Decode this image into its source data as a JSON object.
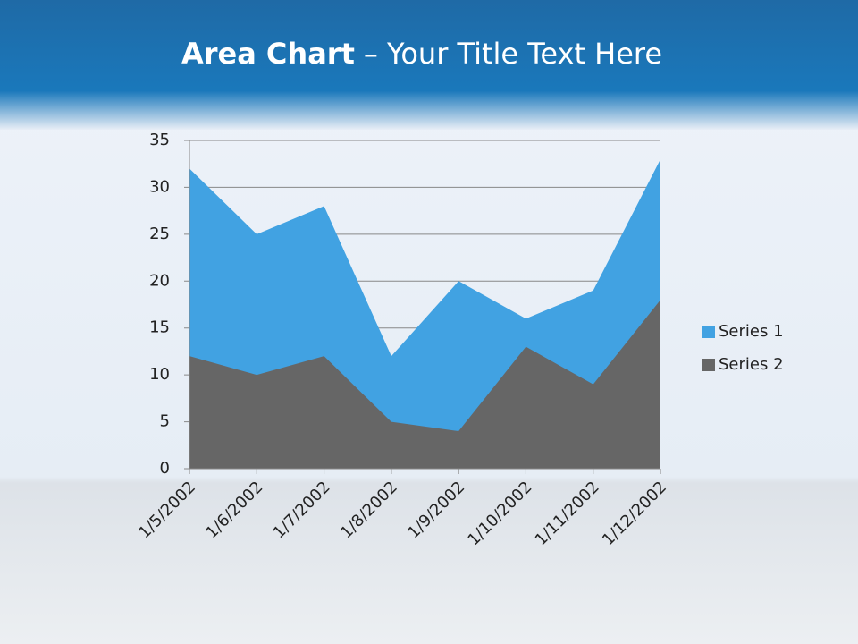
{
  "chart_data": {
    "type": "area",
    "title": [
      "Area Chart",
      "– Your Title Text Here"
    ],
    "categories": [
      "1/5/2002",
      "1/6/2002",
      "1/7/2002",
      "1/8/2002",
      "1/9/2002",
      "1/10/2002",
      "1/11/2002",
      "1/12/2002"
    ],
    "series": [
      {
        "name": "Series 1",
        "color": "#41a2e2",
        "values": [
          32,
          25,
          28,
          12,
          20,
          16,
          19,
          33
        ]
      },
      {
        "name": "Series 2",
        "color": "#666666",
        "values": [
          12,
          10,
          12,
          5,
          4,
          13,
          9,
          18
        ]
      }
    ],
    "ylim": [
      0,
      35
    ],
    "yticks": [
      0,
      5,
      10,
      15,
      20,
      25,
      30,
      35
    ],
    "grid": true,
    "legend": "right"
  }
}
